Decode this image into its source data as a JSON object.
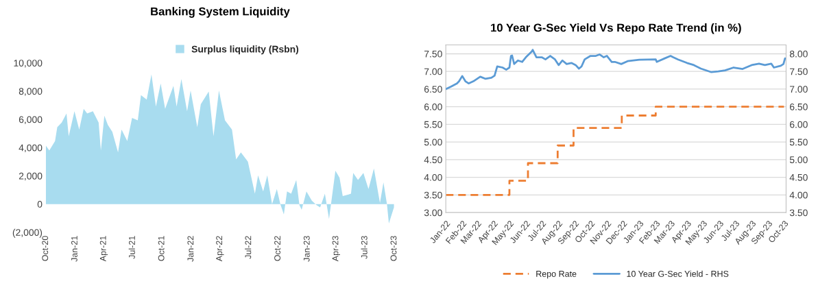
{
  "chart_data": [
    {
      "type": "area",
      "title": "Banking System Liquidity",
      "legend": "top",
      "grid": false,
      "xlim": [
        "2020-10-01",
        "2023-10-01"
      ],
      "xticks": [
        {
          "value": "2020-10-01",
          "label": "Oct-20"
        },
        {
          "value": "2021-01-01",
          "label": "Jan-21"
        },
        {
          "value": "2021-04-01",
          "label": "Apr-21"
        },
        {
          "value": "2021-07-01",
          "label": "Jul-21"
        },
        {
          "value": "2021-10-01",
          "label": "Oct-21"
        },
        {
          "value": "2022-01-01",
          "label": "Jan-22"
        },
        {
          "value": "2022-04-01",
          "label": "Apr-22"
        },
        {
          "value": "2022-07-01",
          "label": "Jul-22"
        },
        {
          "value": "2022-10-01",
          "label": "Oct-22"
        },
        {
          "value": "2023-01-01",
          "label": "Jan-23"
        },
        {
          "value": "2023-04-01",
          "label": "Apr-23"
        },
        {
          "value": "2023-07-01",
          "label": "Jul-23"
        },
        {
          "value": "2023-10-01",
          "label": "Oct-23"
        }
      ],
      "ylim": [
        -2000,
        10000
      ],
      "yticks": [
        {
          "value": -2000,
          "label": "(2,000)"
        },
        0,
        {
          "value": 2000,
          "label": "2,000"
        },
        {
          "value": 4000,
          "label": "4,000"
        },
        {
          "value": 6000,
          "label": "6,000"
        },
        {
          "value": 8000,
          "label": "8,000"
        },
        {
          "value": 10000,
          "label": "10,000"
        }
      ],
      "series": [
        {
          "name": "Surplus liquidity (Rsbn)",
          "color": "#a8dcef",
          "x": [
            "2020-10-01",
            "2020-10-12",
            "2020-10-30",
            "2020-11-06",
            "2020-11-20",
            "2020-12-05",
            "2020-12-12",
            "2020-12-30",
            "2021-01-14",
            "2021-01-28",
            "2021-02-08",
            "2021-02-26",
            "2021-03-16",
            "2021-03-23",
            "2021-04-03",
            "2021-04-14",
            "2021-04-28",
            "2021-05-16",
            "2021-05-27",
            "2021-06-14",
            "2021-06-29",
            "2021-07-17",
            "2021-07-27",
            "2021-08-14",
            "2021-08-29",
            "2021-09-12",
            "2021-09-27",
            "2021-10-11",
            "2021-11-06",
            "2021-11-16",
            "2021-12-01",
            "2021-12-19",
            "2021-12-30",
            "2022-01-20",
            "2022-01-31",
            "2022-02-25",
            "2022-03-12",
            "2022-03-29",
            "2022-04-17",
            "2022-05-09",
            "2022-05-22",
            "2022-06-06",
            "2022-06-28",
            "2022-07-20",
            "2022-07-30",
            "2022-08-15",
            "2022-08-28",
            "2022-09-12",
            "2022-09-27",
            "2022-10-08",
            "2022-10-19",
            "2022-10-29",
            "2022-11-11",
            "2022-11-27",
            "2022-12-07",
            "2022-12-14",
            "2022-12-29",
            "2023-01-15",
            "2023-01-30",
            "2023-02-10",
            "2023-02-25",
            "2023-03-10",
            "2023-03-30",
            "2023-04-12",
            "2023-04-22",
            "2023-05-18",
            "2023-05-25",
            "2023-06-09",
            "2023-06-26",
            "2023-07-12",
            "2023-07-29",
            "2023-08-17",
            "2023-08-28",
            "2023-09-08",
            "2023-09-14",
            "2023-09-30"
          ],
          "values": [
            4150,
            3800,
            4470,
            5450,
            5770,
            6420,
            4800,
            6580,
            5280,
            6750,
            6420,
            6580,
            5770,
            3800,
            6260,
            5610,
            5120,
            3660,
            5280,
            4470,
            6100,
            5930,
            7720,
            7400,
            9190,
            6910,
            8540,
            6750,
            8370,
            6910,
            8860,
            6580,
            8050,
            5450,
            7070,
            7970,
            4800,
            8050,
            5930,
            5280,
            3170,
            3660,
            3010,
            730,
            2030,
            890,
            2030,
            0,
            1060,
            0,
            -730,
            890,
            730,
            1710,
            -80,
            -410,
            890,
            240,
            -80,
            -240,
            730,
            -1060,
            2360,
            1870,
            570,
            730,
            2200,
            1710,
            2200,
            1060,
            2520,
            80,
            1540,
            0,
            -1380,
            -240
          ]
        }
      ]
    },
    {
      "type": "line",
      "title": "10 Year G-Sec Yield Vs Repo Rate Trend (in %)",
      "legend": "bottom",
      "grid": "y",
      "xlim": [
        "2022-01-01",
        "2023-10-05"
      ],
      "xticks": [
        {
          "value": "2022-01-01",
          "label": "Jan-22"
        },
        {
          "value": "2022-02-01",
          "label": "Feb-22"
        },
        {
          "value": "2022-03-01",
          "label": "Mar-22"
        },
        {
          "value": "2022-04-01",
          "label": "Apr-22"
        },
        {
          "value": "2022-05-01",
          "label": "May-22"
        },
        {
          "value": "2022-06-01",
          "label": "Jun-22"
        },
        {
          "value": "2022-07-01",
          "label": "Jul-22"
        },
        {
          "value": "2022-08-01",
          "label": "Aug-22"
        },
        {
          "value": "2022-09-01",
          "label": "Sep-22"
        },
        {
          "value": "2022-10-01",
          "label": "Oct-22"
        },
        {
          "value": "2022-11-01",
          "label": "Nov-22"
        },
        {
          "value": "2022-12-01",
          "label": "Dec-22"
        },
        {
          "value": "2023-01-01",
          "label": "Jan-23"
        },
        {
          "value": "2023-02-01",
          "label": "Feb-23"
        },
        {
          "value": "2023-03-01",
          "label": "Mar-23"
        },
        {
          "value": "2023-04-01",
          "label": "Apr-23"
        },
        {
          "value": "2023-05-01",
          "label": "May-23"
        },
        {
          "value": "2023-06-01",
          "label": "Jun-23"
        },
        {
          "value": "2023-07-01",
          "label": "Jul-23"
        },
        {
          "value": "2023-08-01",
          "label": "Aug-23"
        },
        {
          "value": "2023-09-01",
          "label": "Sep-23"
        },
        {
          "value": "2023-10-01",
          "label": "Oct-23"
        }
      ],
      "ylim": [
        3.0,
        7.75
      ],
      "yticks": [
        {
          "value": 3.0,
          "label": "3.00"
        },
        {
          "value": 3.5,
          "label": "3.50"
        },
        {
          "value": 4.0,
          "label": "4.00"
        },
        {
          "value": 4.5,
          "label": "4.50"
        },
        {
          "value": 5.0,
          "label": "5.00"
        },
        {
          "value": 5.5,
          "label": "5.50"
        },
        {
          "value": 6.0,
          "label": "6.00"
        },
        {
          "value": 6.5,
          "label": "6.50"
        },
        {
          "value": 7.0,
          "label": "7.00"
        },
        {
          "value": 7.5,
          "label": "7.50"
        }
      ],
      "y2lim": [
        3.5,
        8.25
      ],
      "y2ticks": [
        {
          "value": 3.5,
          "label": "3.50"
        },
        {
          "value": 4.0,
          "label": "4.00"
        },
        {
          "value": 4.5,
          "label": "4.50"
        },
        {
          "value": 5.0,
          "label": "5.00"
        },
        {
          "value": 5.5,
          "label": "5.50"
        },
        {
          "value": 6.0,
          "label": "6.00"
        },
        {
          "value": 6.5,
          "label": "6.50"
        },
        {
          "value": 7.0,
          "label": "7.00"
        },
        {
          "value": 7.5,
          "label": "7.50"
        },
        {
          "value": 8.0,
          "label": "8.00"
        }
      ],
      "series": [
        {
          "name": "Repo Rate",
          "type": "step",
          "color": "#ed7d31",
          "line_style": "dashed",
          "x": [
            "2022-01-01",
            "2022-05-01",
            "2022-06-05",
            "2022-07-31",
            "2022-08-30",
            "2022-11-29",
            "2023-02-01",
            "2023-10-01"
          ],
          "values": [
            3.5,
            3.9,
            4.4,
            4.9,
            5.4,
            5.75,
            6.0,
            6.0
          ]
        },
        {
          "name": "10 Year G-Sec Yield - RHS",
          "type": "line",
          "axis": "y2",
          "color": "#5b9bd5",
          "line_style": "solid",
          "x": [
            "2022-01-01",
            "2022-01-11",
            "2022-01-22",
            "2022-01-26",
            "2022-02-01",
            "2022-02-07",
            "2022-02-13",
            "2022-02-22",
            "2022-03-07",
            "2022-03-17",
            "2022-03-28",
            "2022-04-03",
            "2022-04-08",
            "2022-04-18",
            "2022-04-25",
            "2022-05-01",
            "2022-05-04",
            "2022-05-06",
            "2022-05-10",
            "2022-05-17",
            "2022-05-25",
            "2022-06-01",
            "2022-06-12",
            "2022-06-14",
            "2022-06-21",
            "2022-07-01",
            "2022-07-08",
            "2022-07-17",
            "2022-07-26",
            "2022-08-02",
            "2022-08-09",
            "2022-08-17",
            "2022-08-26",
            "2022-09-03",
            "2022-09-09",
            "2022-09-14",
            "2022-09-20",
            "2022-10-01",
            "2022-10-11",
            "2022-10-18",
            "2022-10-26",
            "2022-11-01",
            "2022-11-10",
            "2022-11-16",
            "2022-11-28",
            "2022-12-10",
            "2023-01-01",
            "2023-02-01",
            "2023-02-03",
            "2023-02-18",
            "2023-03-01",
            "2023-03-06",
            "2023-03-15",
            "2023-04-01",
            "2023-04-14",
            "2023-04-27",
            "2023-05-17",
            "2023-05-30",
            "2023-06-12",
            "2023-06-28",
            "2023-07-15",
            "2023-08-01",
            "2023-08-15",
            "2023-08-26",
            "2023-09-07",
            "2023-09-12",
            "2023-09-25",
            "2023-09-30",
            "2023-10-03"
          ],
          "values": [
            7.0,
            7.07,
            7.16,
            7.22,
            7.37,
            7.22,
            7.16,
            7.22,
            7.35,
            7.29,
            7.32,
            7.38,
            7.64,
            7.61,
            7.55,
            7.61,
            7.94,
            7.95,
            7.71,
            7.81,
            7.77,
            7.9,
            8.06,
            8.11,
            7.9,
            7.9,
            7.84,
            7.94,
            7.84,
            7.68,
            7.81,
            7.71,
            7.74,
            7.68,
            7.58,
            7.64,
            7.84,
            7.94,
            7.94,
            7.98,
            7.9,
            7.94,
            7.77,
            7.77,
            7.71,
            7.79,
            7.83,
            7.84,
            7.77,
            7.87,
            7.94,
            7.9,
            7.84,
            7.74,
            7.68,
            7.58,
            7.48,
            7.5,
            7.53,
            7.61,
            7.57,
            7.68,
            7.72,
            7.68,
            7.72,
            7.61,
            7.66,
            7.71,
            7.87
          ]
        }
      ]
    }
  ]
}
